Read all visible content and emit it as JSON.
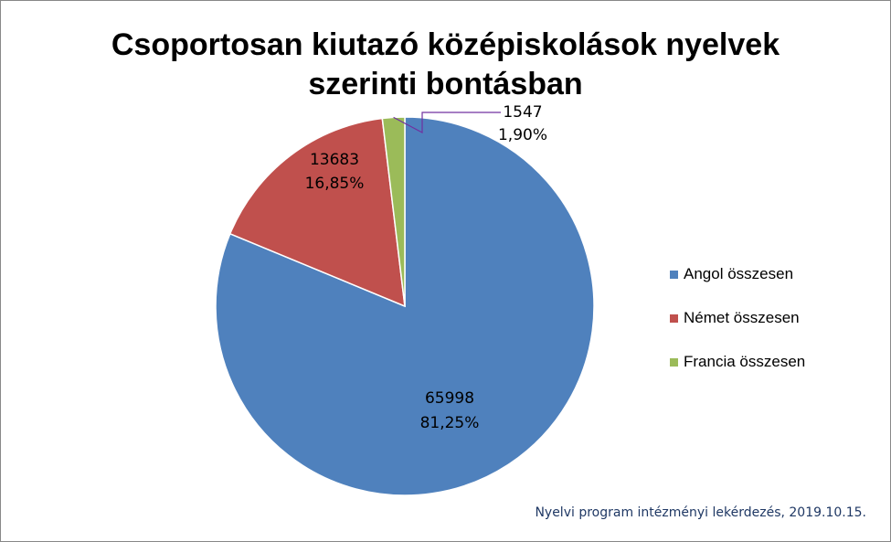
{
  "chart_data": {
    "type": "pie",
    "title": "Csoportosan kiutazó középiskolások nyelvek szerinti bontásban",
    "title_lines": [
      "Csoportosan kiutazó középiskolások nyelvek",
      "szerinti bontásban"
    ],
    "slices": [
      {
        "label": "Angol összesen",
        "value": 65998,
        "value_label": "65998",
        "percent": 81.25,
        "percent_label": "81,25%",
        "color": "#4F81BD"
      },
      {
        "label": "Német összesen",
        "value": 13683,
        "value_label": "13683",
        "percent": 16.85,
        "percent_label": "16,85%",
        "color": "#C0504D"
      },
      {
        "label": "Francia összesen",
        "value": 1547,
        "value_label": "1547",
        "percent": 1.9,
        "percent_label": "1,90%",
        "color": "#9BBB59"
      }
    ],
    "legend_position": "right",
    "start_angle_deg": 0,
    "direction": "clockwise",
    "leader_line_color": "#7030A0"
  },
  "source_note": "Nyelvi program intézményi lekérdezés, 2019.10.15."
}
